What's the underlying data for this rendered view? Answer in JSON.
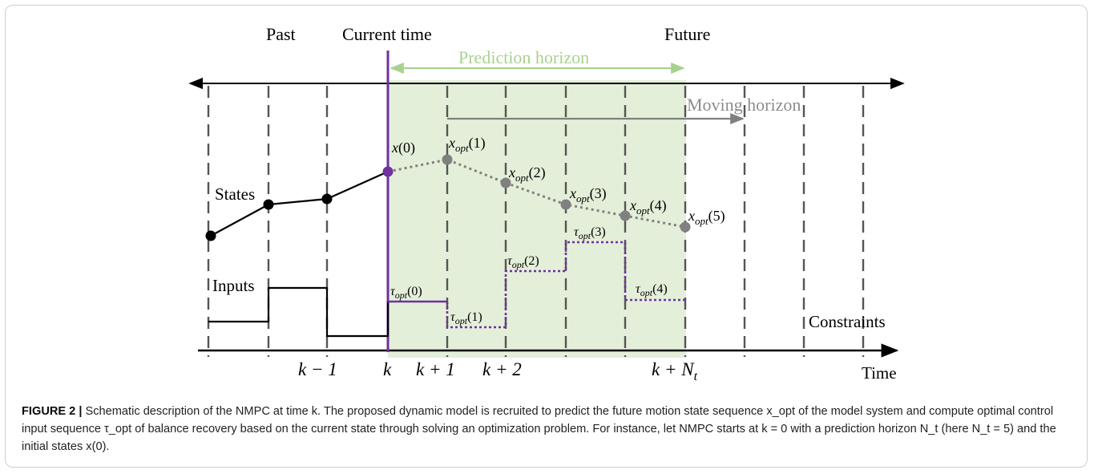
{
  "colors": {
    "prediction_band": "#e4efd9",
    "prediction_text": "#a9d18e",
    "moving_text": "#8c8c8c",
    "current_time_line": "#7030a0",
    "predicted": "#808080",
    "black": "#000000"
  },
  "labels": {
    "past": "Past",
    "current_time": "Current time",
    "future": "Future",
    "prediction_horizon": "Prediction horizon",
    "moving_horizon": "Moving horizon",
    "states": "States",
    "inputs": "Inputs",
    "constraints": "Constraints",
    "time": "Time"
  },
  "tick_labels": {
    "k_minus_1": "k − 1",
    "k": "k",
    "k_plus_1": "k + 1",
    "k_plus_2": "k + 2",
    "k_plus_Nt_main": "k + N",
    "k_plus_Nt_sub": "t"
  },
  "state_labels": [
    {
      "main": "x",
      "sub": "",
      "arg": "(0)"
    },
    {
      "main": "x",
      "sub": "opt",
      "arg": "(1)"
    },
    {
      "main": "x",
      "sub": "opt",
      "arg": "(2)"
    },
    {
      "main": "x",
      "sub": "opt",
      "arg": "(3)"
    },
    {
      "main": "x",
      "sub": "opt",
      "arg": "(4)"
    },
    {
      "main": "x",
      "sub": "opt",
      "arg": "(5)"
    }
  ],
  "input_labels": [
    {
      "main": "τ",
      "sub": "opt",
      "arg": "(0)"
    },
    {
      "main": "τ",
      "sub": "opt",
      "arg": "(1)"
    },
    {
      "main": "τ",
      "sub": "opt",
      "arg": "(2)"
    },
    {
      "main": "τ",
      "sub": "opt",
      "arg": "(3)"
    },
    {
      "main": "τ",
      "sub": "opt",
      "arg": "(4)"
    }
  ],
  "caption": {
    "label": "FIGURE 2 |",
    "text": " Schematic description of the NMPC at time k. The proposed dynamic model is recruited to predict the future motion state sequence x_opt of the model system and compute optimal control input sequence τ_opt of balance recovery based on the current state through solving an optimization problem. For instance, let NMPC starts at k = 0 with a prediction horizon N_t (here N_t = 5) and the initial states x(0)."
  }
}
